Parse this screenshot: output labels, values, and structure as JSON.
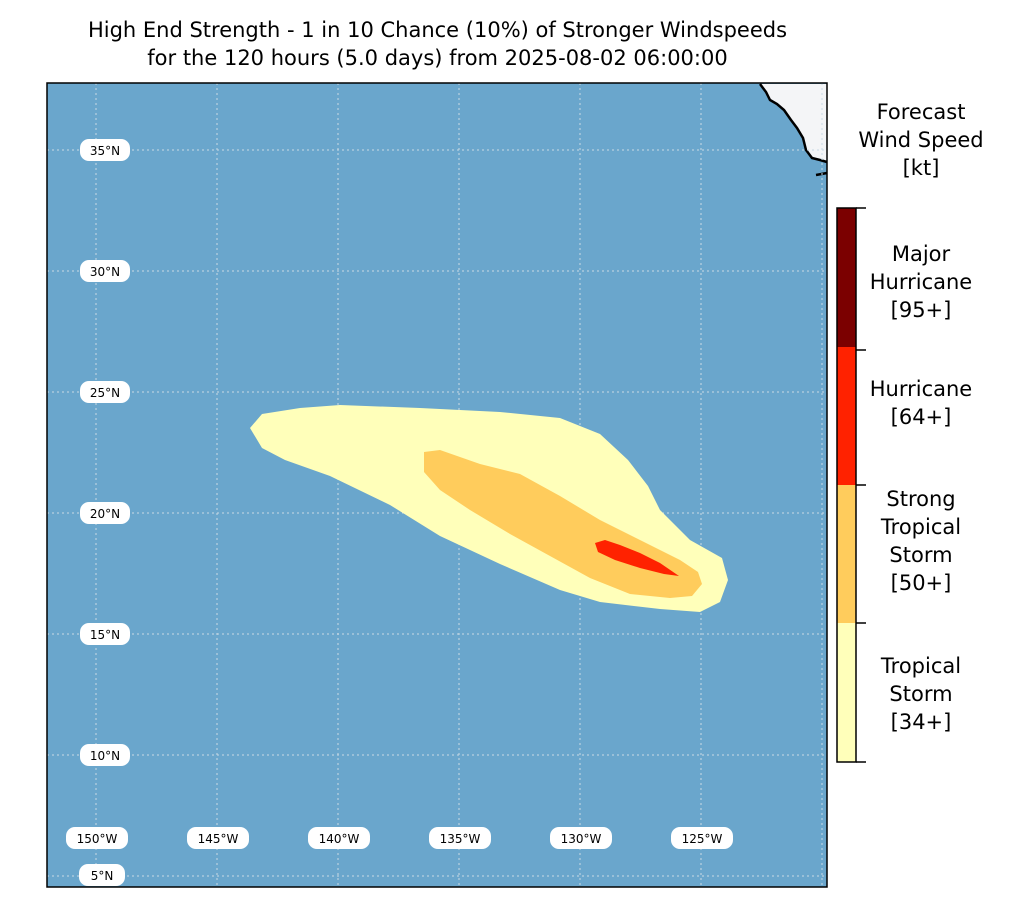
{
  "title": {
    "line1": "High End Strength - 1 in 10 Chance (10%) of Stronger Windspeeds",
    "line2": "for the 120 hours (5.0 days) from 2025-08-02 06:00:00"
  },
  "map": {
    "ocean_color": "#6aa6cc",
    "land_color": "#f4f5f7",
    "lat_labels": [
      "35°N",
      "30°N",
      "25°N",
      "20°N",
      "15°N",
      "10°N",
      "5°N"
    ],
    "lon_labels": [
      "150°W",
      "145°W",
      "140°W",
      "135°W",
      "130°W",
      "125°W"
    ]
  },
  "colorbar": {
    "title_lines": [
      "Forecast",
      "Wind Speed",
      "[kt]"
    ],
    "categories": [
      {
        "lines": [
          "Tropical",
          "Storm",
          "[34+]"
        ],
        "color": "#ffffba"
      },
      {
        "lines": [
          "Strong",
          "Tropical",
          "Storm",
          "[50+]"
        ],
        "color": "#ffcc5c"
      },
      {
        "lines": [
          "Hurricane",
          "[64+]"
        ],
        "color": "#ff2200"
      },
      {
        "lines": [
          "Major",
          "Hurricane",
          "[95+]"
        ],
        "color": "#7b0000"
      }
    ]
  },
  "wind_areas": {
    "tropical_storm_34": {
      "color": "#ffffba"
    },
    "strong_tropical_storm_50": {
      "color": "#ffcc5c"
    },
    "hurricane_64": {
      "color": "#ff2200"
    }
  }
}
